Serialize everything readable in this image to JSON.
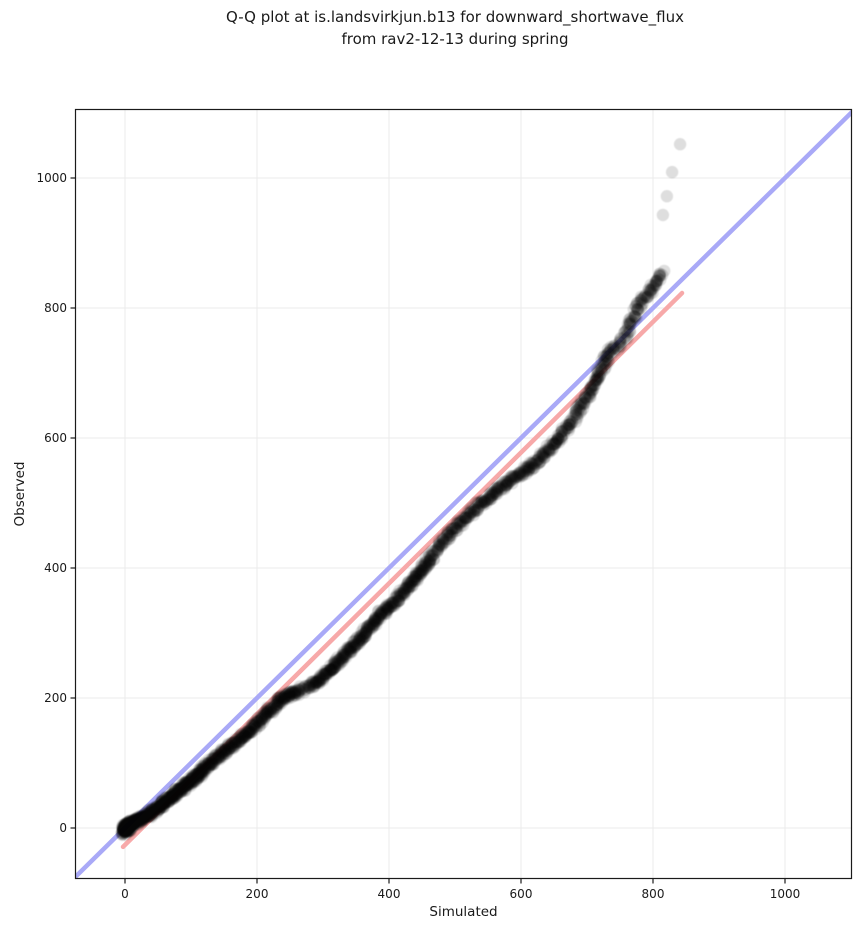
{
  "figure": {
    "title_line1": "Q-Q plot at is.landsvirkjun.b13 for downward_shortwave_flux",
    "title_line2": "from rav2-12-13 during spring"
  },
  "chart_data": {
    "type": "scatter",
    "subtype": "qq-plot",
    "title": "Q-Q plot at is.landsvirkjun.b13 for downward_shortwave_flux from rav2-12-13 during spring",
    "xlabel": "Simulated",
    "ylabel": "Observed",
    "xlim": [
      -75,
      1100
    ],
    "ylim": [
      -78,
      1106
    ],
    "x_ticks": [
      0,
      200,
      400,
      600,
      800,
      1000
    ],
    "y_ticks": [
      0,
      200,
      400,
      600,
      800,
      1000
    ],
    "grid": true,
    "grid_color": "#ebebeb",
    "background": "#ffffff",
    "spine_color": "#1a1a1a",
    "text_color": "#1a1a1a",
    "identity_line": {
      "name": "identity (y = x)",
      "from": [
        -80,
        -80
      ],
      "to": [
        1106,
        1106
      ],
      "color": "#a9a9f7",
      "width": 4.5
    },
    "fit_line": {
      "name": "regression fit",
      "from": [
        -3,
        -29
      ],
      "to": [
        844,
        823
      ],
      "color": "#f7a9a9",
      "width": 4.5
    },
    "point_style": {
      "color": "#000000",
      "opacity": 0.13,
      "radius": 6.2,
      "density_tiers": [
        [
          130,
          14
        ],
        [
          260,
          11
        ],
        [
          460,
          8
        ],
        [
          660,
          6
        ],
        [
          750,
          5
        ],
        [
          9999,
          4
        ]
      ],
      "interp_step": 6,
      "jitter": 4.5
    },
    "qq_points": [
      [
        0,
        1
      ],
      [
        8,
        5
      ],
      [
        16,
        9
      ],
      [
        24,
        13
      ],
      [
        32,
        18
      ],
      [
        40,
        24
      ],
      [
        48,
        30
      ],
      [
        56,
        36
      ],
      [
        64,
        43
      ],
      [
        72,
        49
      ],
      [
        80,
        56
      ],
      [
        88,
        62
      ],
      [
        96,
        69
      ],
      [
        104,
        76
      ],
      [
        112,
        83
      ],
      [
        120,
        91
      ],
      [
        130,
        101
      ],
      [
        140,
        110
      ],
      [
        150,
        118
      ],
      [
        160,
        126
      ],
      [
        170,
        133
      ],
      [
        180,
        141
      ],
      [
        190,
        150
      ],
      [
        200,
        161
      ],
      [
        210,
        171
      ],
      [
        220,
        181
      ],
      [
        230,
        192
      ],
      [
        240,
        200
      ],
      [
        250,
        205
      ],
      [
        260,
        209
      ],
      [
        268,
        213
      ],
      [
        276,
        217
      ],
      [
        284,
        221
      ],
      [
        292,
        226
      ],
      [
        300,
        232
      ],
      [
        311,
        243
      ],
      [
        322,
        255
      ],
      [
        333,
        267
      ],
      [
        344,
        279
      ],
      [
        355,
        291
      ],
      [
        366,
        303
      ],
      [
        377,
        316
      ],
      [
        388,
        330
      ],
      [
        400,
        340
      ],
      [
        412,
        353
      ],
      [
        424,
        366
      ],
      [
        436,
        380
      ],
      [
        448,
        394
      ],
      [
        460,
        412
      ],
      [
        472,
        428
      ],
      [
        484,
        443
      ],
      [
        496,
        456
      ],
      [
        508,
        469
      ],
      [
        520,
        481
      ],
      [
        532,
        493
      ],
      [
        544,
        503
      ],
      [
        556,
        512
      ],
      [
        568,
        522
      ],
      [
        580,
        531
      ],
      [
        592,
        540
      ],
      [
        604,
        549
      ],
      [
        616,
        558
      ],
      [
        628,
        568
      ],
      [
        640,
        580
      ],
      [
        651,
        593
      ],
      [
        662,
        606
      ],
      [
        672,
        619
      ],
      [
        682,
        633
      ],
      [
        691,
        649
      ],
      [
        700,
        662
      ],
      [
        708,
        678
      ],
      [
        715,
        693
      ],
      [
        722,
        708
      ],
      [
        729,
        722
      ],
      [
        736,
        733
      ],
      [
        743,
        740
      ],
      [
        750,
        744
      ],
      [
        757,
        755
      ],
      [
        763,
        768
      ],
      [
        769,
        783
      ],
      [
        774,
        795
      ],
      [
        780,
        804
      ],
      [
        786,
        813
      ],
      [
        792,
        821
      ],
      [
        798,
        829
      ],
      [
        804,
        838
      ],
      [
        809,
        846
      ],
      [
        813,
        852
      ],
      [
        817,
        857
      ]
    ],
    "origin_cluster": [
      [
        -3,
        -5
      ],
      [
        -1,
        -7
      ],
      [
        0,
        -3
      ],
      [
        1,
        1
      ],
      [
        2,
        -5
      ],
      [
        2,
        4
      ],
      [
        3,
        0
      ],
      [
        4,
        7
      ],
      [
        5,
        2
      ],
      [
        6,
        -2
      ],
      [
        7,
        5
      ],
      [
        8,
        9
      ],
      [
        10,
        3
      ],
      [
        12,
        8
      ],
      [
        14,
        11
      ],
      [
        17,
        9
      ],
      [
        20,
        13
      ],
      [
        24,
        15
      ]
    ],
    "outliers": [
      [
        815,
        943
      ],
      [
        821,
        972
      ],
      [
        829,
        1009
      ],
      [
        841,
        1052
      ]
    ]
  }
}
